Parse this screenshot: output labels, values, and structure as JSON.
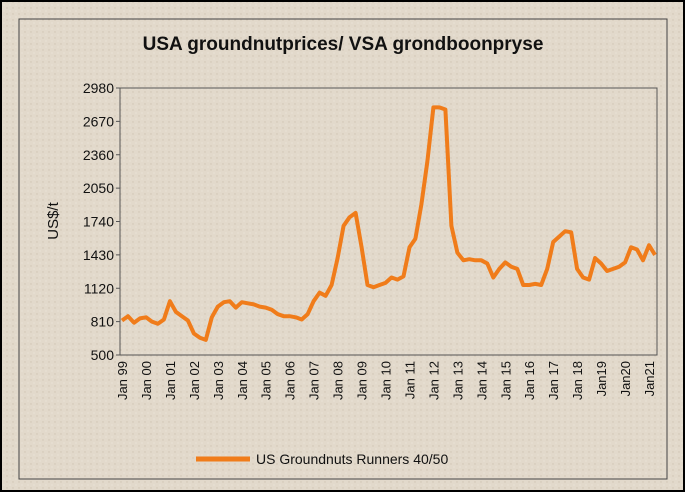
{
  "chart_data": {
    "type": "line",
    "title": "USA groundnutprices/  VSA grondboonpryse",
    "y_label": "US$/t",
    "categories": [
      "Jan 99",
      null,
      null,
      null,
      "Jan 00",
      null,
      null,
      null,
      "Jan 01",
      null,
      null,
      null,
      "Jan 02",
      null,
      null,
      null,
      "Jan 03",
      null,
      null,
      null,
      "Jan 04",
      null,
      null,
      null,
      "Jan 05",
      null,
      null,
      null,
      "Jan 06",
      null,
      null,
      null,
      "Jan 07",
      null,
      null,
      null,
      "Jan 08",
      null,
      null,
      null,
      "Jan 09",
      null,
      null,
      null,
      "Jan 10",
      null,
      null,
      null,
      "Jan 11",
      null,
      null,
      null,
      "Jan 12",
      null,
      null,
      null,
      "Jan 13",
      null,
      null,
      null,
      "Jan 14",
      null,
      null,
      null,
      "Jan 15",
      null,
      null,
      null,
      "Jan 16",
      null,
      null,
      null,
      "Jan 17",
      null,
      null,
      null,
      "Jan 18",
      null,
      null,
      null,
      "Jan19",
      null,
      null,
      null,
      "Jan20",
      null,
      null,
      null,
      "Jan21",
      null
    ],
    "series": [
      {
        "name": "US Groundnuts Runners 40/50",
        "color": "#f07c1a",
        "values": [
          820,
          860,
          800,
          840,
          850,
          810,
          790,
          830,
          1000,
          900,
          860,
          820,
          700,
          660,
          640,
          850,
          950,
          990,
          1000,
          940,
          990,
          980,
          970,
          950,
          940,
          920,
          880,
          860,
          860,
          850,
          830,
          880,
          1000,
          1080,
          1050,
          1150,
          1400,
          1700,
          1780,
          1820,
          1500,
          1150,
          1130,
          1150,
          1170,
          1220,
          1200,
          1230,
          1500,
          1580,
          1900,
          2300,
          2800,
          2800,
          2780,
          1700,
          1450,
          1380,
          1390,
          1380,
          1380,
          1350,
          1220,
          1300,
          1360,
          1320,
          1300,
          1150,
          1150,
          1160,
          1150,
          1300,
          1550,
          1600,
          1650,
          1640,
          1300,
          1220,
          1200,
          1400,
          1350,
          1280,
          1300,
          1320,
          1360,
          1500,
          1480,
          1380,
          1520,
          1430
        ]
      }
    ],
    "ylim": [
      500,
      2980
    ],
    "yticks": [
      500,
      810,
      1120,
      1430,
      1740,
      2050,
      2360,
      2670,
      2980
    ],
    "legend": "bottom"
  }
}
